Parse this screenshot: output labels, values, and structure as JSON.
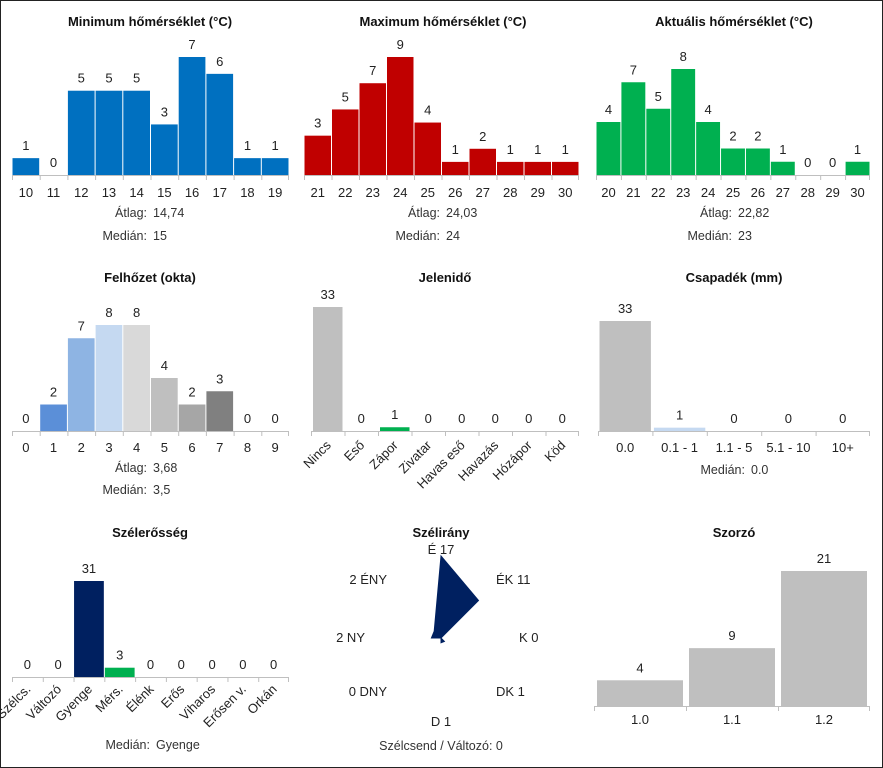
{
  "chart_data": [
    {
      "id": "min",
      "type": "bar",
      "title": "Minimum hőmérséklet (°C)",
      "categories": [
        "10",
        "11",
        "12",
        "13",
        "14",
        "15",
        "16",
        "17",
        "18",
        "19"
      ],
      "values": [
        1,
        0,
        5,
        5,
        5,
        3,
        7,
        6,
        1,
        1
      ],
      "colors": [
        "#0070C0"
      ],
      "stats": [
        {
          "label": "Átlag:",
          "value": "14,74"
        },
        {
          "label": "Medián:",
          "value": "15"
        }
      ]
    },
    {
      "id": "max",
      "type": "bar",
      "title": "Maximum hőmérséklet (°C)",
      "categories": [
        "21",
        "22",
        "23",
        "24",
        "25",
        "26",
        "27",
        "28",
        "29",
        "30"
      ],
      "values": [
        3,
        5,
        7,
        9,
        4,
        1,
        2,
        1,
        1,
        1
      ],
      "colors": [
        "#C00000"
      ],
      "stats": [
        {
          "label": "Átlag:",
          "value": "24,03"
        },
        {
          "label": "Medián:",
          "value": "24"
        }
      ]
    },
    {
      "id": "cur",
      "type": "bar",
      "title": "Aktuális hőmérséklet (°C)",
      "categories": [
        "20",
        "21",
        "22",
        "23",
        "24",
        "25",
        "26",
        "27",
        "28",
        "29",
        "30"
      ],
      "values": [
        4,
        7,
        5,
        8,
        4,
        2,
        2,
        1,
        0,
        0,
        1
      ],
      "colors": [
        "#00B050"
      ],
      "stats": [
        {
          "label": "Átlag:",
          "value": "22,82"
        },
        {
          "label": "Medián:",
          "value": "23"
        }
      ]
    },
    {
      "id": "cloud",
      "type": "bar",
      "title": "Felhőzet (okta)",
      "categories": [
        "0",
        "1",
        "2",
        "3",
        "4",
        "5",
        "6",
        "7",
        "8",
        "9"
      ],
      "values": [
        0,
        2,
        7,
        8,
        8,
        4,
        2,
        3,
        0,
        0
      ],
      "colors": [
        "#5B8FD8",
        "#5B8FD8",
        "#8EB4E3",
        "#C5D9F1",
        "#D9D9D9",
        "#BFBFBF",
        "#A6A6A6",
        "#808080",
        "#808080",
        "#808080"
      ],
      "stats": [
        {
          "label": "Átlag:",
          "value": "3,68"
        },
        {
          "label": "Medián:",
          "value": "3,5"
        }
      ]
    },
    {
      "id": "weather",
      "type": "bar",
      "title": "Jelenidő",
      "categories": [
        "Nincs",
        "Eső",
        "Zápor",
        "Zivatar",
        "Havas eső",
        "Havazás",
        "Hózápor",
        "Köd"
      ],
      "values": [
        33,
        0,
        1,
        0,
        0,
        0,
        0,
        0
      ],
      "colors": [
        "#BFBFBF",
        "#BFBFBF",
        "#00B050",
        "#BFBFBF",
        "#BFBFBF",
        "#BFBFBF",
        "#BFBFBF",
        "#BFBFBF"
      ],
      "rotate_labels": true,
      "stats": []
    },
    {
      "id": "precip",
      "type": "bar",
      "title": "Csapadék (mm)",
      "categories": [
        "0.0",
        "0.1 - 1",
        "1.1 - 5",
        "5.1 - 10",
        "10+"
      ],
      "values": [
        33,
        1,
        0,
        0,
        0
      ],
      "colors": [
        "#BFBFBF",
        "#C5D9F1",
        "#BFBFBF",
        "#BFBFBF",
        "#BFBFBF"
      ],
      "stats": [
        {
          "label": "Medián:",
          "value": "0.0"
        }
      ]
    },
    {
      "id": "wind",
      "type": "bar",
      "title": "Szélerősség",
      "categories": [
        "Szélcs.",
        "Változó",
        "Gyenge",
        "Mérs.",
        "Élénk",
        "Erős",
        "Viharos",
        "Erősen v.",
        "Orkán"
      ],
      "values": [
        0,
        0,
        31,
        3,
        0,
        0,
        0,
        0,
        0
      ],
      "colors": [
        "#002060",
        "#002060",
        "#002060",
        "#00B050",
        "#002060",
        "#002060",
        "#002060",
        "#002060",
        "#002060"
      ],
      "rotate_labels": true,
      "stats": [
        {
          "label": "Medián:",
          "value": "Gyenge"
        }
      ]
    },
    {
      "id": "dir",
      "type": "radar",
      "title": "Szélirány",
      "directions": [
        "É",
        "ÉK",
        "K",
        "DK",
        "D",
        "DNY",
        "NY",
        "ÉNY"
      ],
      "values": [
        17,
        11,
        0,
        1,
        1,
        0,
        2,
        2
      ],
      "colors": [
        "#002060"
      ],
      "footer": "Szélcsend / Változó: 0"
    },
    {
      "id": "mult",
      "type": "bar",
      "title": "Szorzó",
      "categories": [
        "1.0",
        "1.1",
        "1.2"
      ],
      "values": [
        4,
        9,
        21
      ],
      "colors": [
        "#BFBFBF"
      ],
      "stats": []
    }
  ]
}
